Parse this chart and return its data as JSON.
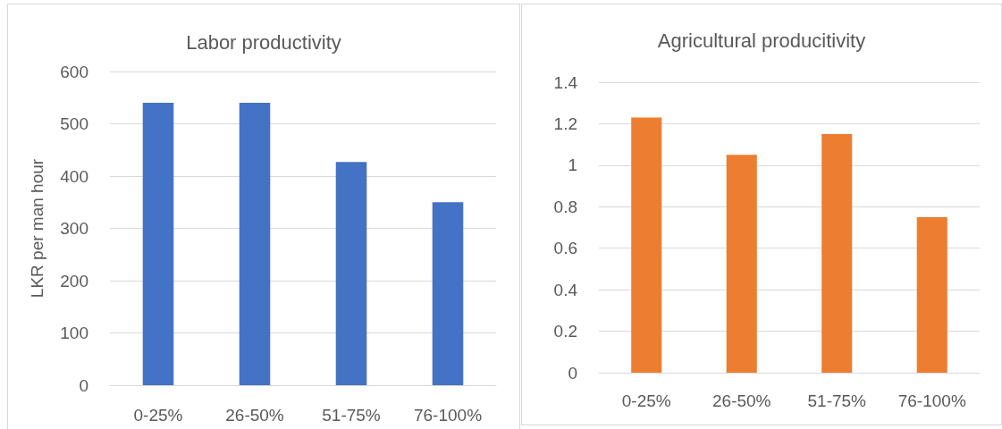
{
  "chart_data": [
    {
      "type": "bar",
      "title": "Labor productivity",
      "ylabel": "LKR per man hour",
      "categories": [
        "0-25%",
        "26-50%",
        "51-75%",
        "76-100%"
      ],
      "series": [
        {
          "color": "#4472c4",
          "values": [
            540,
            540,
            427,
            350
          ]
        }
      ],
      "ylim": [
        0,
        600
      ],
      "yticks": [
        0,
        100,
        200,
        300,
        400,
        500,
        600
      ],
      "grid": "y"
    },
    {
      "type": "bar",
      "title": "Agricultural producitivity",
      "categories": [
        "0-25%",
        "26-50%",
        "51-75%",
        "76-100%"
      ],
      "series": [
        {
          "color": "#ed7d31",
          "values": [
            1.23,
            1.05,
            1.15,
            0.75
          ]
        }
      ],
      "ylim": [
        0,
        1.4
      ],
      "yticks": [
        0,
        0.2,
        0.4,
        0.6,
        0.8,
        1,
        1.2,
        1.4
      ],
      "grid": "y"
    }
  ]
}
